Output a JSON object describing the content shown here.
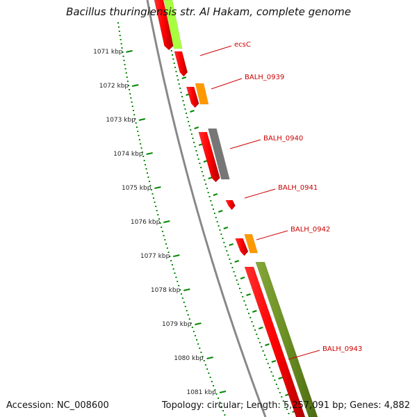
{
  "title": "Bacillus thuringiensis str. Al Hakam, complete genome",
  "footer": {
    "accession": "Accession: NC_008600",
    "summary": "Topology: circular; Length: 5,257,091 bp; Genes: 4,882"
  },
  "colors": {
    "cds": "#ff0000",
    "orange_feature": "#ff9900",
    "gray_feature": "#777777",
    "olive_feature": "#6b8e23",
    "light_green_feature": "#a8ff40",
    "backbone": "#888888",
    "tick": "#008800",
    "label": "#cc0000"
  },
  "ticks": [
    {
      "label": "1071 kbp",
      "kbp": 1071
    },
    {
      "label": "1072 kbp",
      "kbp": 1072
    },
    {
      "label": "1073 kbp",
      "kbp": 1073
    },
    {
      "label": "1074 kbp",
      "kbp": 1074
    },
    {
      "label": "1075 kbp",
      "kbp": 1075
    },
    {
      "label": "1076 kbp",
      "kbp": 1076
    },
    {
      "label": "1077 kbp",
      "kbp": 1077
    },
    {
      "label": "1078 kbp",
      "kbp": 1078
    },
    {
      "label": "1079 kbp",
      "kbp": 1079
    },
    {
      "label": "1080 kbp",
      "kbp": 1080
    },
    {
      "label": "1081 kbp",
      "kbp": 1081
    }
  ],
  "gene_labels": [
    {
      "name": "ecsC"
    },
    {
      "name": "BALH_0939"
    },
    {
      "name": "BALH_0940"
    },
    {
      "name": "BALH_0941"
    },
    {
      "name": "BALH_0942"
    },
    {
      "name": "BALH_0943"
    }
  ]
}
